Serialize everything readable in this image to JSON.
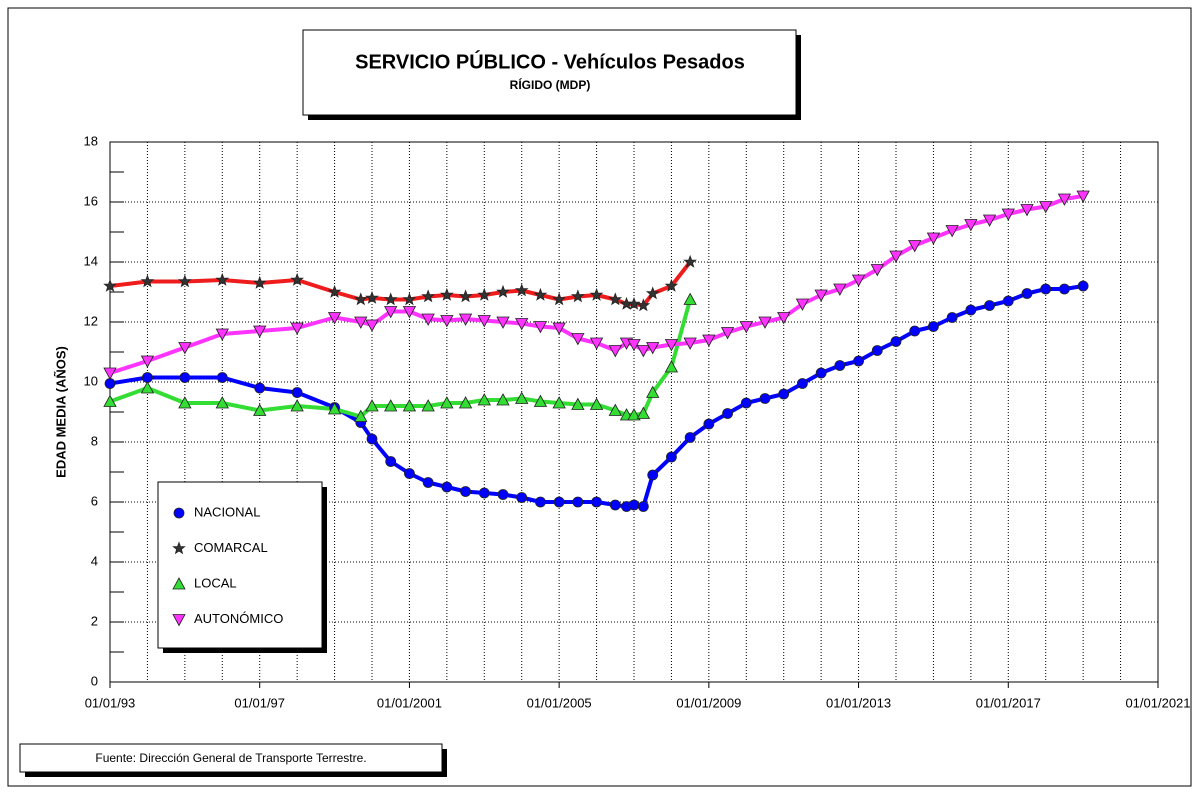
{
  "chart_data": {
    "type": "line",
    "title": "SERVICIO PÚBLICO - Vehículos Pesados",
    "subtitle": "RÍGIDO (MDP)",
    "y_label": "EDAD MEDIA  (AÑOS)",
    "source": "Fuente: Dirección General de Transporte Terrestre.",
    "xlim": [
      1993,
      2021
    ],
    "xticks": [
      {
        "value": 1993,
        "label": "01/01/93"
      },
      {
        "value": 1997,
        "label": "01/01/97"
      },
      {
        "value": 2001,
        "label": "01/01/2001"
      },
      {
        "value": 2005,
        "label": "01/01/2005"
      },
      {
        "value": 2009,
        "label": "01/01/2009"
      },
      {
        "value": 2013,
        "label": "01/01/2013"
      },
      {
        "value": 2017,
        "label": "01/01/2017"
      },
      {
        "value": 2021,
        "label": "01/01/2021"
      }
    ],
    "x_minor_ticks": [
      1994,
      1995,
      1996,
      1998,
      1999,
      2000,
      2002,
      2003,
      2004,
      2006,
      2007,
      2008,
      2010,
      2011,
      2012,
      2014,
      2015,
      2016,
      2018,
      2019,
      2020
    ],
    "ylim": [
      0,
      18
    ],
    "yticks": [
      0,
      2,
      4,
      6,
      8,
      10,
      12,
      14,
      16,
      18
    ],
    "y_minor_ticks": [
      1,
      3,
      5,
      7,
      9,
      11,
      13,
      15,
      17
    ],
    "grid": true,
    "legend": "lower-left",
    "series": [
      {
        "name": "NACIONAL",
        "color": "#0000ff",
        "marker": "circle",
        "x": [
          1993,
          1994,
          1995,
          1996,
          1997,
          1998,
          1999,
          1999.7,
          2000,
          2000.5,
          2001,
          2001.5,
          2002,
          2002.5,
          2003,
          2003.5,
          2004,
          2004.5,
          2005,
          2005.5,
          2006,
          2006.5,
          2006.8,
          2007,
          2007.25,
          2007.5,
          2008,
          2008.5,
          2009,
          2009.5,
          2010,
          2010.5,
          2011,
          2011.5,
          2012,
          2012.5,
          2013,
          2013.5,
          2014,
          2014.5,
          2015,
          2015.5,
          2016,
          2016.5,
          2017,
          2017.5,
          2018,
          2018.5,
          2019
        ],
        "values": [
          9.95,
          10.15,
          10.15,
          10.15,
          9.8,
          9.65,
          9.15,
          8.65,
          8.1,
          7.35,
          6.95,
          6.65,
          6.5,
          6.35,
          6.3,
          6.25,
          6.15,
          6.0,
          6.0,
          6.0,
          6.0,
          5.9,
          5.85,
          5.9,
          5.85,
          6.9,
          7.5,
          8.15,
          8.6,
          8.95,
          9.3,
          9.45,
          9.6,
          9.95,
          10.3,
          10.55,
          10.7,
          11.05,
          11.35,
          11.7,
          11.85,
          12.15,
          12.4,
          12.55,
          12.7,
          12.95,
          13.1,
          13.1,
          13.2
        ]
      },
      {
        "name": "COMARCAL",
        "color": "#ee1c1c",
        "marker": "star",
        "x": [
          1993,
          1994,
          1995,
          1996,
          1997,
          1998,
          1999,
          1999.7,
          2000,
          2000.5,
          2001,
          2001.5,
          2002,
          2002.5,
          2003,
          2003.5,
          2004,
          2004.5,
          2005,
          2005.5,
          2006,
          2006.5,
          2006.8,
          2007,
          2007.25,
          2007.5,
          2008,
          2008.5
        ],
        "values": [
          13.2,
          13.35,
          13.35,
          13.4,
          13.3,
          13.4,
          13.0,
          12.75,
          12.8,
          12.75,
          12.75,
          12.85,
          12.9,
          12.85,
          12.9,
          13.0,
          13.05,
          12.9,
          12.75,
          12.85,
          12.9,
          12.75,
          12.6,
          12.6,
          12.55,
          12.95,
          13.2,
          14.0
        ]
      },
      {
        "name": "LOCAL",
        "color": "#33dd33",
        "marker": "triangle-up",
        "x": [
          1993,
          1994,
          1995,
          1996,
          1997,
          1998,
          1999,
          1999.7,
          2000,
          2000.5,
          2001,
          2001.5,
          2002,
          2002.5,
          2003,
          2003.5,
          2004,
          2004.5,
          2005,
          2005.5,
          2006,
          2006.5,
          2006.8,
          2007,
          2007.25,
          2007.5,
          2008,
          2008.5
        ],
        "values": [
          9.35,
          9.8,
          9.3,
          9.3,
          9.05,
          9.2,
          9.1,
          8.85,
          9.2,
          9.2,
          9.2,
          9.2,
          9.3,
          9.3,
          9.4,
          9.4,
          9.45,
          9.35,
          9.3,
          9.25,
          9.25,
          9.05,
          8.9,
          8.9,
          8.95,
          9.65,
          10.5,
          12.75
        ]
      },
      {
        "name": "AUTONÓMICO",
        "color": "#ff33ff",
        "marker": "triangle-down",
        "x": [
          1993,
          1994,
          1995,
          1996,
          1997,
          1998,
          1999,
          1999.7,
          2000,
          2000.5,
          2001,
          2001.5,
          2002,
          2002.5,
          2003,
          2003.5,
          2004,
          2004.5,
          2005,
          2005.5,
          2006,
          2006.5,
          2006.8,
          2007,
          2007.25,
          2007.5,
          2008,
          2008.5,
          2009,
          2009.5,
          2010,
          2010.5,
          2011,
          2011.5,
          2012,
          2012.5,
          2013,
          2013.5,
          2014,
          2014.5,
          2015,
          2015.5,
          2016,
          2016.5,
          2017,
          2017.5,
          2018,
          2018.5,
          2019
        ],
        "values": [
          10.3,
          10.7,
          11.15,
          11.6,
          11.7,
          11.8,
          12.15,
          12.0,
          11.9,
          12.35,
          12.35,
          12.1,
          12.05,
          12.1,
          12.05,
          12.0,
          11.95,
          11.85,
          11.8,
          11.45,
          11.3,
          11.05,
          11.3,
          11.25,
          11.05,
          11.15,
          11.25,
          11.3,
          11.4,
          11.65,
          11.85,
          12.0,
          12.15,
          12.6,
          12.9,
          13.1,
          13.4,
          13.75,
          14.2,
          14.55,
          14.8,
          15.05,
          15.25,
          15.4,
          15.6,
          15.75,
          15.85,
          16.1,
          16.2
        ]
      }
    ]
  }
}
